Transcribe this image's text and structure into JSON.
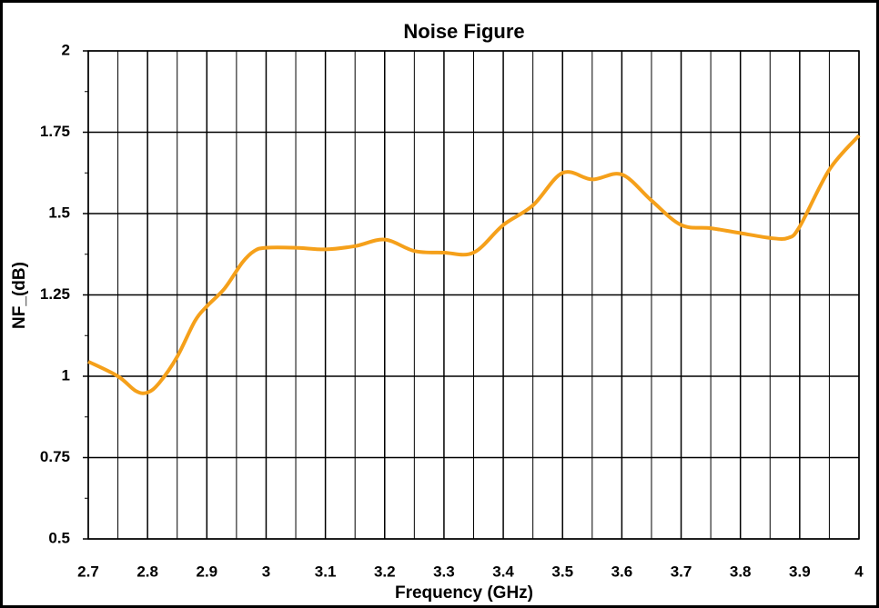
{
  "chart_data": {
    "type": "line",
    "title": "Noise Figure",
    "xlabel": "Frequency (GHz)",
    "ylabel": "NF_(dB)",
    "x": [
      2.7,
      2.75,
      2.78,
      2.8,
      2.82,
      2.85,
      2.88,
      2.9,
      2.93,
      2.96,
      2.98,
      3.0,
      3.05,
      3.1,
      3.15,
      3.2,
      3.25,
      3.3,
      3.35,
      3.4,
      3.45,
      3.5,
      3.55,
      3.6,
      3.65,
      3.7,
      3.75,
      3.8,
      3.85,
      3.88,
      3.9,
      3.95,
      4.0
    ],
    "series": [
      {
        "color": "#f5a01a",
        "values": [
          1.045,
          1.0,
          0.955,
          0.95,
          0.98,
          1.06,
          1.17,
          1.215,
          1.27,
          1.35,
          1.385,
          1.395,
          1.395,
          1.39,
          1.4,
          1.42,
          1.385,
          1.38,
          1.38,
          1.465,
          1.525,
          1.625,
          1.605,
          1.62,
          1.54,
          1.465,
          1.455,
          1.44,
          1.425,
          1.425,
          1.46,
          1.635,
          1.74
        ]
      }
    ],
    "xlim": [
      2.7,
      4.0
    ],
    "ylim": [
      0.5,
      2.0
    ],
    "xticks": [
      2.7,
      2.8,
      2.9,
      3,
      3.1,
      3.2,
      3.3,
      3.4,
      3.5,
      3.6,
      3.7,
      3.8,
      3.9,
      4
    ],
    "xminorticks": [
      2.75,
      2.85,
      2.95,
      3.05,
      3.15,
      3.25,
      3.35,
      3.45,
      3.55,
      3.65,
      3.75,
      3.85,
      3.95
    ],
    "yticks": [
      0.5,
      0.75,
      1,
      1.25,
      1.5,
      1.75,
      2
    ],
    "yminorticks": [
      0.625,
      0.875,
      1.125,
      1.375,
      1.625,
      1.875
    ],
    "grid": true
  }
}
